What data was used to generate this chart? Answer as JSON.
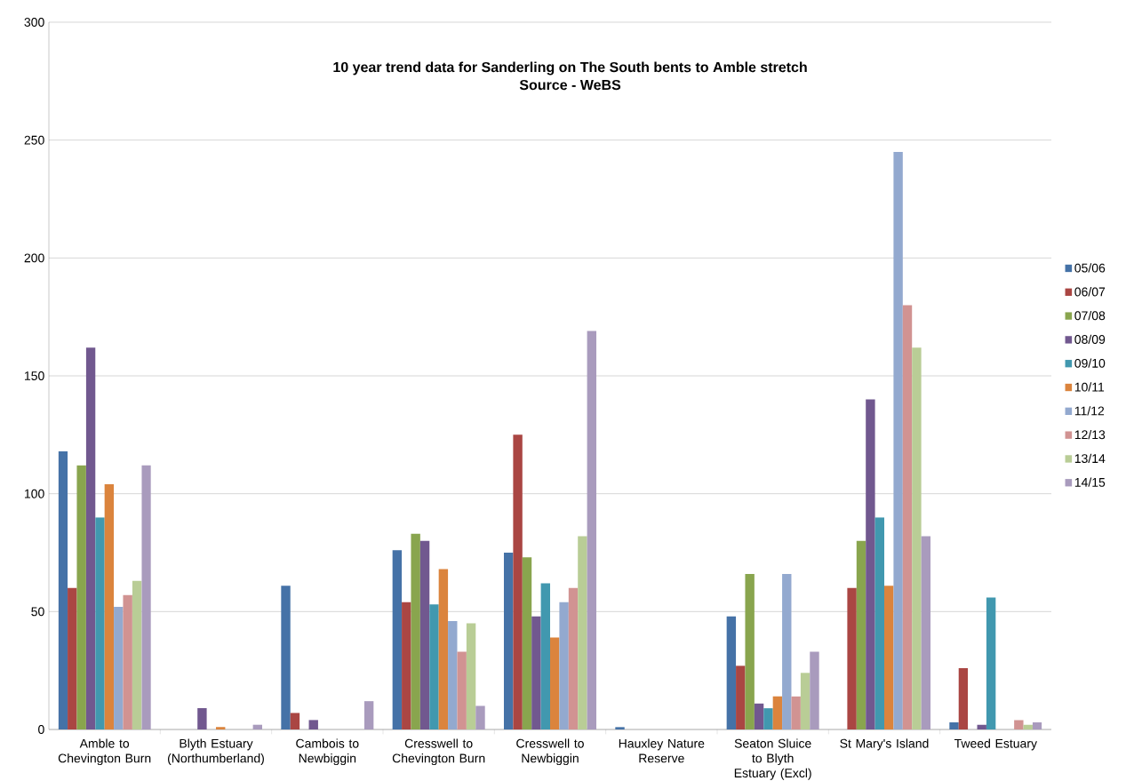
{
  "chart_data": {
    "type": "bar",
    "title": "10 year trend data for Sanderling on The South bents to Amble stretch",
    "subtitle": "Source - WeBS",
    "categories": [
      "Amble to Chevington Burn",
      "Blyth Estuary (Northumberland)",
      "Cambois to Newbiggin",
      "Cresswell to Chevington Burn",
      "Cresswell to Newbiggin",
      "Hauxley Nature Reserve",
      "Seaton Sluice to Blyth Estuary (Excl)",
      "St Mary's Island",
      "Tweed Estuary"
    ],
    "series": [
      {
        "name": "05/06",
        "color": "#4572a7",
        "values": [
          118,
          null,
          61,
          76,
          75,
          1,
          48,
          null,
          3
        ]
      },
      {
        "name": "06/07",
        "color": "#aa4643",
        "values": [
          60,
          null,
          7,
          54,
          125,
          null,
          27,
          60,
          26
        ]
      },
      {
        "name": "07/08",
        "color": "#89a54e",
        "values": [
          112,
          null,
          null,
          83,
          73,
          null,
          66,
          80,
          null
        ]
      },
      {
        "name": "08/09",
        "color": "#71588f",
        "values": [
          162,
          9,
          4,
          80,
          48,
          null,
          11,
          140,
          2
        ]
      },
      {
        "name": "09/10",
        "color": "#4198af",
        "values": [
          90,
          null,
          null,
          53,
          62,
          null,
          9,
          90,
          56
        ]
      },
      {
        "name": "10/11",
        "color": "#db843d",
        "values": [
          104,
          1,
          null,
          68,
          39,
          null,
          14,
          61,
          null
        ]
      },
      {
        "name": "11/12",
        "color": "#93a9cf",
        "values": [
          52,
          null,
          null,
          46,
          54,
          null,
          66,
          245,
          null
        ]
      },
      {
        "name": "12/13",
        "color": "#d19392",
        "values": [
          57,
          null,
          null,
          33,
          60,
          null,
          14,
          180,
          4
        ]
      },
      {
        "name": "13/14",
        "color": "#b9cd96",
        "values": [
          63,
          null,
          null,
          45,
          82,
          null,
          24,
          162,
          2
        ]
      },
      {
        "name": "14/15",
        "color": "#a99bbd",
        "values": [
          112,
          2,
          12,
          10,
          169,
          null,
          33,
          82,
          3
        ]
      }
    ],
    "ylim": [
      0,
      300
    ],
    "yticks": [
      0,
      50,
      100,
      150,
      200,
      250,
      300
    ],
    "grid": "y",
    "legend": "right"
  }
}
